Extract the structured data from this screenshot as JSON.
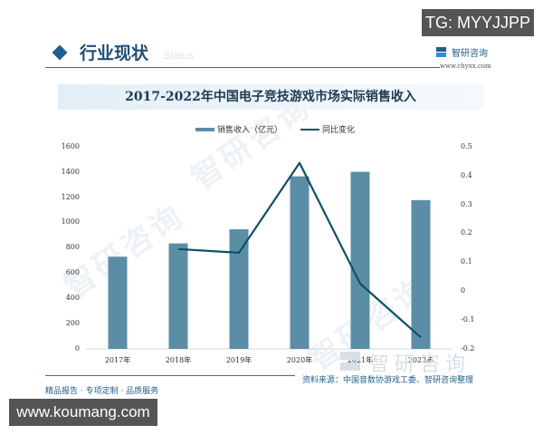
{
  "overlay": {
    "tg_badge": "TG: MYYJJPP",
    "site_badge": "www.koumang.com"
  },
  "header": {
    "section_title": "行业现状",
    "section_ghost": "Status",
    "brand_name": "智研咨询",
    "brand_url": "www.chyxx.com"
  },
  "chart_data": {
    "type": "bar",
    "title": "2017-2022年中国电子竞技游戏市场实际销售收入",
    "categories": [
      "2017年",
      "2018年",
      "2019年",
      "2020年",
      "2021年",
      "2022年"
    ],
    "series": [
      {
        "name": "销售收入（亿元）",
        "type": "bar",
        "axis": "left",
        "color": "#5b8ea6",
        "values": [
          730,
          835,
          947,
          1366,
          1402,
          1178
        ]
      },
      {
        "name": "同比变化",
        "type": "line",
        "axis": "right",
        "color": "#0d5166",
        "values": [
          null,
          0.146,
          0.133,
          0.444,
          0.026,
          -0.16
        ]
      }
    ],
    "xlabel": "",
    "ylabel": "",
    "ylim": [
      0,
      1600
    ],
    "y_ticks": [
      "0",
      "200",
      "400",
      "600",
      "800",
      "1000",
      "1200",
      "1400",
      "1600"
    ],
    "y2lim": [
      -0.2,
      0.5
    ],
    "y2_ticks": [
      "-0.2",
      "-0.1",
      "0",
      "0.1",
      "0.2",
      "0.3",
      "0.4",
      "0.5"
    ],
    "legend_position": "top",
    "grid": false
  },
  "legend": {
    "bar_label": "销售收入（亿元）",
    "line_label": "同比变化"
  },
  "footer": {
    "tagline": "精品报告 · 专项定制 · 品质服务",
    "source": "资料来源：中国音数协游戏工委、智研咨询整理",
    "watermark_brand": "智研咨询"
  }
}
